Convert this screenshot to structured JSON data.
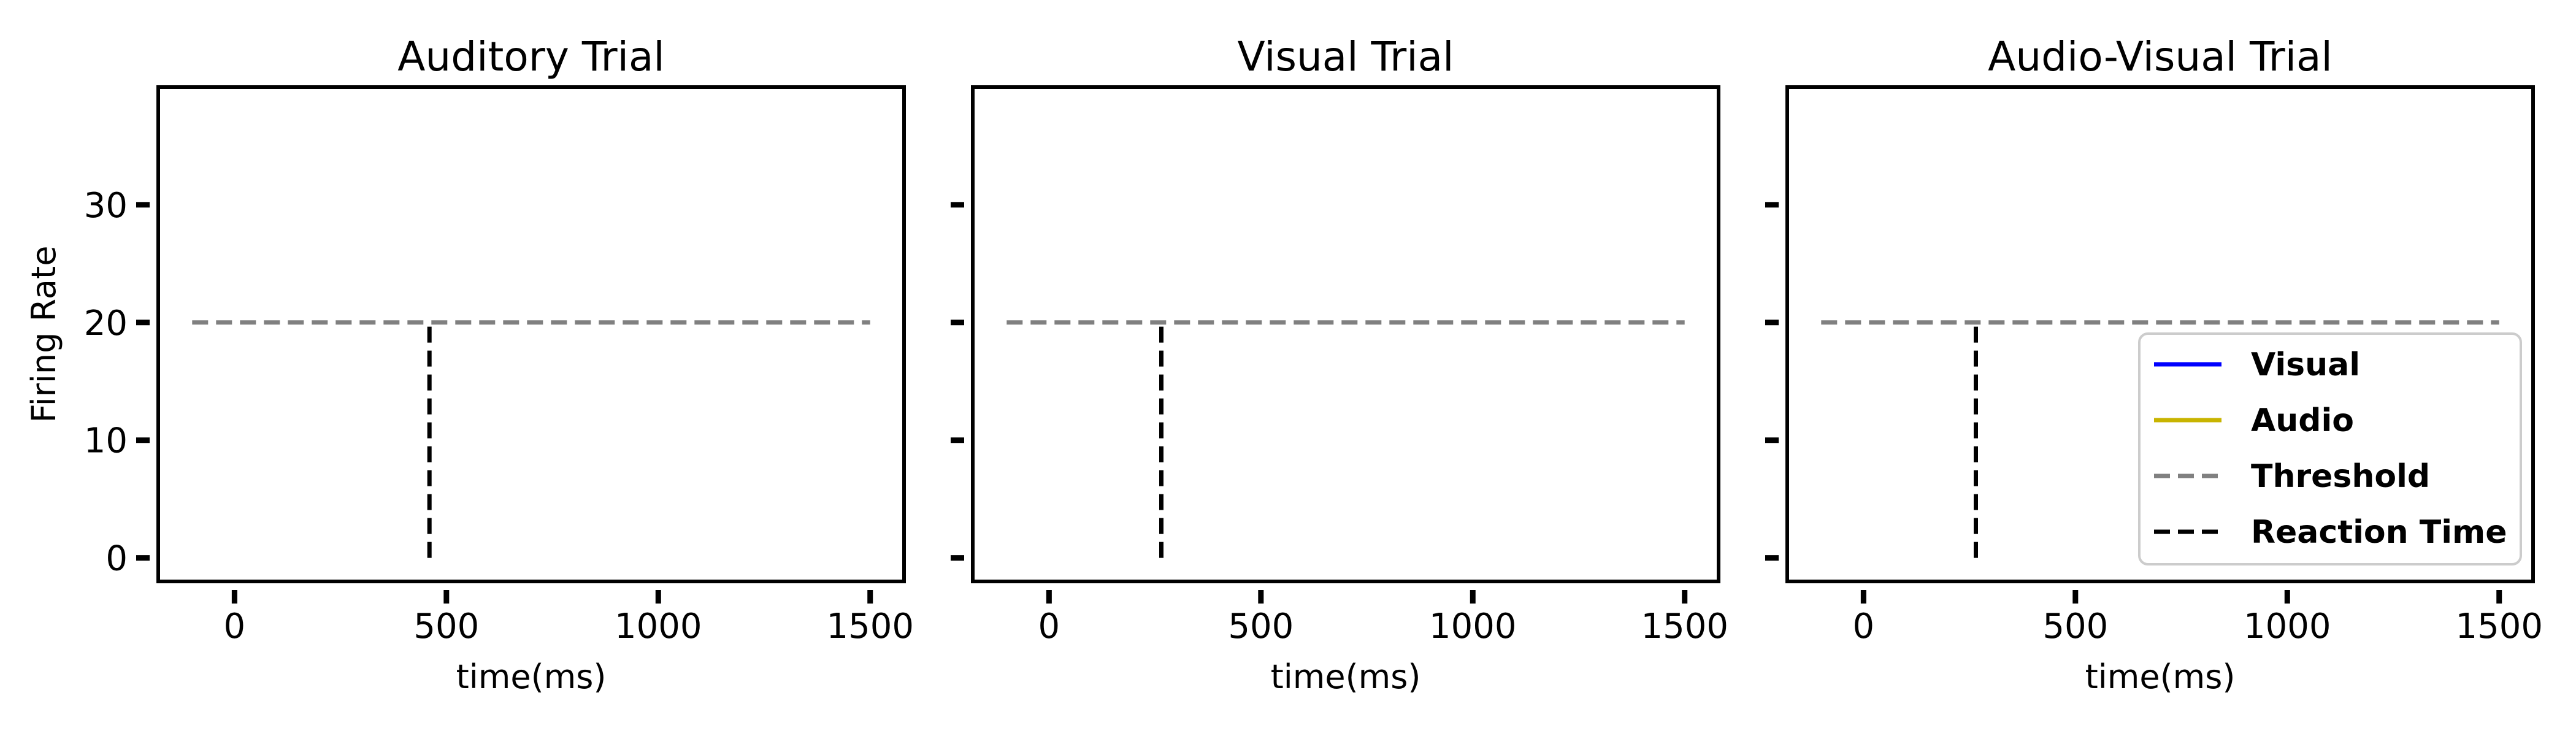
{
  "chart_data": [
    {
      "type": "line",
      "title": "Auditory Trial",
      "xlabel": "time(ms)",
      "ylabel": "Firing Rate",
      "xlim": [
        -180,
        1580
      ],
      "ylim": [
        -2,
        40
      ],
      "xticks": [
        0,
        500,
        1000,
        1500
      ],
      "yticks": [
        0,
        10,
        20,
        30
      ],
      "show_ytick_labels": true,
      "grid": false,
      "series": [
        {
          "name": "Threshold",
          "color": "#808080",
          "style": "dashed",
          "x": [
            -100,
            1500
          ],
          "y": [
            20,
            20
          ]
        },
        {
          "name": "Reaction Time",
          "color": "#000000",
          "style": "dashed",
          "x": [
            460,
            460
          ],
          "y": [
            0,
            20
          ]
        }
      ]
    },
    {
      "type": "line",
      "title": "Visual Trial",
      "xlabel": "time(ms)",
      "ylabel": "",
      "xlim": [
        -180,
        1580
      ],
      "ylim": [
        -2,
        40
      ],
      "xticks": [
        0,
        500,
        1000,
        1500
      ],
      "yticks": [
        0,
        10,
        20,
        30
      ],
      "show_ytick_labels": false,
      "grid": false,
      "series": [
        {
          "name": "Threshold",
          "color": "#808080",
          "style": "dashed",
          "x": [
            -100,
            1500
          ],
          "y": [
            20,
            20
          ]
        },
        {
          "name": "Reaction Time",
          "color": "#000000",
          "style": "dashed",
          "x": [
            265,
            265
          ],
          "y": [
            0,
            20
          ]
        }
      ]
    },
    {
      "type": "line",
      "title": "Audio-Visual Trial",
      "xlabel": "time(ms)",
      "ylabel": "",
      "xlim": [
        -180,
        1580
      ],
      "ylim": [
        -2,
        40
      ],
      "xticks": [
        0,
        500,
        1000,
        1500
      ],
      "yticks": [
        0,
        10,
        20,
        30
      ],
      "show_ytick_labels": false,
      "grid": false,
      "legend_position": "lower-right",
      "series": [
        {
          "name": "Threshold",
          "color": "#808080",
          "style": "dashed",
          "x": [
            -100,
            1500
          ],
          "y": [
            20,
            20
          ]
        },
        {
          "name": "Reaction Time",
          "color": "#000000",
          "style": "dashed",
          "x": [
            265,
            265
          ],
          "y": [
            0,
            20
          ]
        }
      ]
    }
  ],
  "legend": {
    "entries": [
      {
        "label": "Visual",
        "color": "#0000ff",
        "style": "solid"
      },
      {
        "label": "Audio",
        "color": "#c8b400",
        "style": "solid"
      },
      {
        "label": "Threshold",
        "color": "#808080",
        "style": "dashed"
      },
      {
        "label": "Reaction Time",
        "color": "#000000",
        "style": "dashed"
      }
    ]
  }
}
